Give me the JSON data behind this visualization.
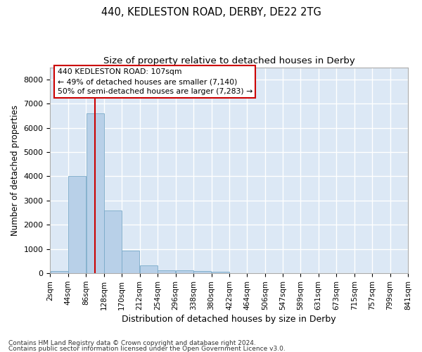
{
  "title": "440, KEDLESTON ROAD, DERBY, DE22 2TG",
  "subtitle": "Size of property relative to detached houses in Derby",
  "xlabel": "Distribution of detached houses by size in Derby",
  "ylabel": "Number of detached properties",
  "bar_color": "#b8d0e8",
  "bar_edge_color": "#7aaac8",
  "background_color": "#dce8f5",
  "grid_color": "#ffffff",
  "annotation_line_color": "#cc0000",
  "annotation_box_color": "#cc0000",
  "annotation_line1": "440 KEDLESTON ROAD: 107sqm",
  "annotation_line2": "← 49% of detached houses are smaller (7,140)",
  "annotation_line3": "50% of semi-detached houses are larger (7,283) →",
  "property_size": 107,
  "bin_edges": [
    2,
    44,
    86,
    128,
    170,
    212,
    254,
    296,
    338,
    380,
    422,
    464,
    506,
    547,
    589,
    631,
    673,
    715,
    757,
    799,
    841
  ],
  "bin_counts": [
    100,
    4000,
    6600,
    2600,
    950,
    320,
    130,
    120,
    80,
    60,
    0,
    0,
    0,
    0,
    0,
    0,
    0,
    0,
    0,
    0
  ],
  "ylim": [
    0,
    8500
  ],
  "yticks": [
    0,
    1000,
    2000,
    3000,
    4000,
    5000,
    6000,
    7000,
    8000
  ],
  "footer_line1": "Contains HM Land Registry data © Crown copyright and database right 2024.",
  "footer_line2": "Contains public sector information licensed under the Open Government Licence v3.0.",
  "fig_width": 6.0,
  "fig_height": 5.0,
  "fig_dpi": 100
}
